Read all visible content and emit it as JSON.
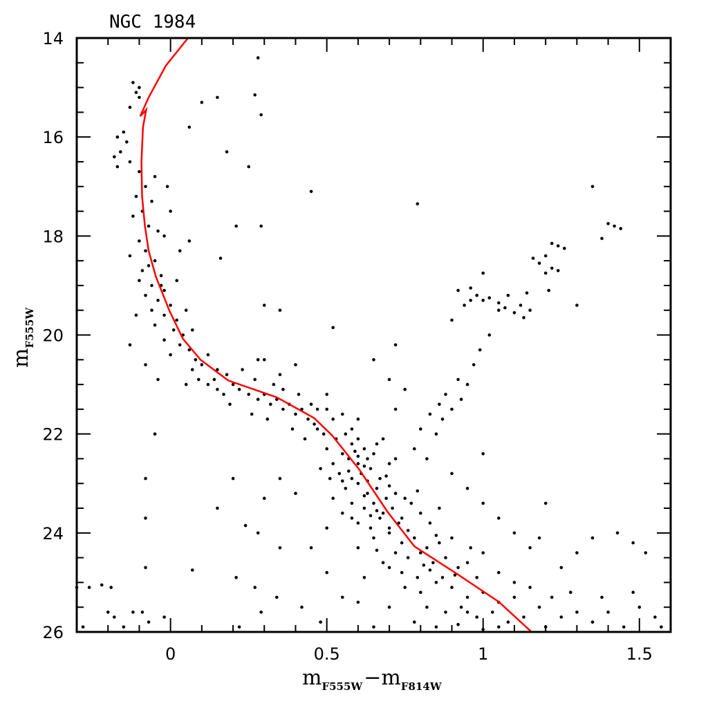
{
  "chart_data": {
    "type": "scatter",
    "title": "NGC 1984",
    "xlabel": {
      "base": "m",
      "sub": "F555W",
      "minus": "−",
      "base2": "m",
      "sub2": "F814W"
    },
    "ylabel": {
      "base": "m",
      "sub": "F555W"
    },
    "xlim": [
      -0.3,
      1.6
    ],
    "ylim": [
      26,
      14
    ],
    "y_inverted": true,
    "x_major_ticks": [
      0,
      0.5,
      1,
      1.5
    ],
    "x_tick_labels": [
      "0",
      "0.5",
      "1",
      "1.5"
    ],
    "x_minor_step": 0.1,
    "y_major_ticks": [
      14,
      16,
      18,
      20,
      22,
      24,
      26
    ],
    "y_tick_labels": [
      "14",
      "16",
      "18",
      "20",
      "22",
      "24",
      "26"
    ],
    "y_minor_step": 0.5,
    "grid": false,
    "point_color": "#000000",
    "isochrone_color": "#ff0000",
    "isochrone": [
      [
        0.056,
        14.0
      ],
      [
        -0.015,
        14.56
      ],
      [
        -0.07,
        15.2
      ],
      [
        -0.097,
        15.58
      ],
      [
        -0.085,
        15.5
      ],
      [
        -0.078,
        15.45
      ],
      [
        -0.088,
        15.8
      ],
      [
        -0.093,
        16.5
      ],
      [
        -0.091,
        17.2
      ],
      [
        -0.082,
        17.8
      ],
      [
        -0.07,
        18.3
      ],
      [
        -0.047,
        18.82
      ],
      [
        -0.003,
        19.52
      ],
      [
        0.04,
        20.08
      ],
      [
        0.096,
        20.5
      ],
      [
        0.185,
        20.92
      ],
      [
        0.34,
        21.26
      ],
      [
        0.46,
        21.68
      ],
      [
        0.517,
        22.03
      ],
      [
        0.605,
        22.73
      ],
      [
        0.694,
        23.57
      ],
      [
        0.78,
        24.27
      ],
      [
        0.917,
        24.83
      ],
      [
        1.05,
        25.39
      ],
      [
        1.155,
        26.0
      ]
    ],
    "points": [
      [
        -0.12,
        14.9
      ],
      [
        -0.1,
        15.0
      ],
      [
        -0.11,
        15.1
      ],
      [
        -0.1,
        15.2
      ],
      [
        -0.13,
        15.4
      ],
      [
        -0.15,
        15.9
      ],
      [
        -0.17,
        16.0
      ],
      [
        -0.14,
        16.1
      ],
      [
        -0.16,
        16.3
      ],
      [
        -0.18,
        16.4
      ],
      [
        -0.13,
        16.5
      ],
      [
        -0.17,
        16.6
      ],
      [
        -0.1,
        16.7
      ],
      [
        -0.05,
        16.8
      ],
      [
        -0.08,
        17.0
      ],
      [
        -0.11,
        17.2
      ],
      [
        -0.06,
        17.3
      ],
      [
        -0.09,
        17.5
      ],
      [
        -0.12,
        17.6
      ],
      [
        -0.07,
        17.8
      ],
      [
        -0.04,
        17.9
      ],
      [
        -0.1,
        18.1
      ],
      [
        -0.02,
        18.0
      ],
      [
        -0.08,
        18.3
      ],
      [
        -0.13,
        18.4
      ],
      [
        -0.05,
        18.5
      ],
      [
        -0.09,
        18.7
      ],
      [
        -0.03,
        18.8
      ],
      [
        -0.1,
        18.9
      ],
      [
        -0.06,
        19.0
      ],
      [
        -0.02,
        19.1
      ],
      [
        -0.08,
        19.2
      ],
      [
        -0.04,
        19.3
      ],
      [
        0.0,
        19.4
      ],
      [
        -0.06,
        19.5
      ],
      [
        -0.02,
        19.6
      ],
      [
        0.02,
        19.7
      ],
      [
        -0.05,
        19.8
      ],
      [
        0.01,
        19.9
      ],
      [
        0.04,
        20.0
      ],
      [
        -0.02,
        20.1
      ],
      [
        0.03,
        20.2
      ],
      [
        0.06,
        20.3
      ],
      [
        0.0,
        20.4
      ],
      [
        0.08,
        20.5
      ],
      [
        -0.03,
        19.0
      ],
      [
        -0.07,
        18.6
      ],
      [
        0.02,
        18.9
      ],
      [
        -0.11,
        19.6
      ],
      [
        0.05,
        19.5
      ],
      [
        0.07,
        19.9
      ],
      [
        -0.01,
        17.0
      ],
      [
        0.0,
        17.5
      ],
      [
        0.03,
        18.3
      ],
      [
        0.06,
        18.1
      ],
      [
        -0.13,
        20.2
      ],
      [
        -0.08,
        20.6
      ],
      [
        -0.04,
        20.9
      ],
      [
        0.1,
        20.6
      ],
      [
        0.12,
        20.4
      ],
      [
        0.15,
        20.7
      ],
      [
        0.14,
        20.9
      ],
      [
        0.18,
        20.8
      ],
      [
        0.2,
        21.0
      ],
      [
        0.22,
        21.1
      ],
      [
        0.25,
        21.2
      ],
      [
        0.27,
        20.9
      ],
      [
        0.28,
        21.3
      ],
      [
        0.3,
        21.2
      ],
      [
        0.32,
        21.4
      ],
      [
        0.34,
        21.3
      ],
      [
        0.36,
        21.5
      ],
      [
        0.38,
        21.4
      ],
      [
        0.4,
        21.6
      ],
      [
        0.42,
        21.5
      ],
      [
        0.44,
        21.7
      ],
      [
        0.46,
        21.8
      ],
      [
        0.47,
        21.9
      ],
      [
        0.49,
        22.0
      ],
      [
        0.12,
        21.0
      ],
      [
        0.17,
        21.2
      ],
      [
        0.23,
        20.7
      ],
      [
        0.28,
        20.5
      ],
      [
        0.33,
        21.0
      ],
      [
        0.36,
        21.1
      ],
      [
        0.41,
        21.2
      ],
      [
        0.45,
        21.4
      ],
      [
        0.5,
        21.5
      ],
      [
        0.52,
        21.7
      ],
      [
        0.55,
        21.6
      ],
      [
        0.58,
        21.9
      ],
      [
        0.6,
        21.7
      ],
      [
        0.09,
        20.9
      ],
      [
        0.19,
        21.4
      ],
      [
        0.26,
        21.6
      ],
      [
        0.31,
        21.7
      ],
      [
        0.39,
        21.9
      ],
      [
        0.43,
        22.1
      ],
      [
        0.5,
        21.2
      ],
      [
        0.47,
        21.5
      ],
      [
        0.35,
        20.8
      ],
      [
        0.3,
        20.5
      ],
      [
        0.4,
        20.6
      ],
      [
        0.15,
        21.1
      ],
      [
        0.07,
        20.7
      ],
      [
        0.05,
        21.0
      ],
      [
        0.53,
        22.1
      ],
      [
        0.56,
        22.0
      ],
      [
        0.58,
        22.2
      ],
      [
        0.6,
        22.1
      ],
      [
        0.62,
        22.3
      ],
      [
        0.55,
        22.4
      ],
      [
        0.57,
        22.5
      ],
      [
        0.6,
        22.6
      ],
      [
        0.63,
        22.5
      ],
      [
        0.65,
        22.4
      ],
      [
        0.52,
        22.6
      ],
      [
        0.54,
        22.8
      ],
      [
        0.58,
        22.9
      ],
      [
        0.61,
        22.8
      ],
      [
        0.64,
        22.7
      ],
      [
        0.67,
        22.9
      ],
      [
        0.7,
        22.6
      ],
      [
        0.5,
        22.3
      ],
      [
        0.48,
        22.7
      ],
      [
        0.66,
        22.2
      ],
      [
        0.59,
        22.35
      ],
      [
        0.62,
        22.65
      ],
      [
        0.57,
        22.75
      ],
      [
        0.69,
        22.85
      ],
      [
        0.55,
        22.95
      ],
      [
        0.72,
        22.5
      ],
      [
        0.68,
        22.1
      ],
      [
        0.51,
        22.9
      ],
      [
        0.63,
        22.95
      ],
      [
        0.6,
        22.45
      ],
      [
        0.56,
        23.1
      ],
      [
        0.6,
        23.0
      ],
      [
        0.63,
        23.2
      ],
      [
        0.66,
        23.1
      ],
      [
        0.69,
        23.3
      ],
      [
        0.72,
        23.2
      ],
      [
        0.58,
        23.4
      ],
      [
        0.62,
        23.5
      ],
      [
        0.65,
        23.4
      ],
      [
        0.68,
        23.6
      ],
      [
        0.71,
        23.5
      ],
      [
        0.74,
        23.7
      ],
      [
        0.77,
        23.4
      ],
      [
        0.6,
        23.8
      ],
      [
        0.64,
        23.9
      ],
      [
        0.67,
        23.7
      ],
      [
        0.7,
        23.9
      ],
      [
        0.73,
        23.8
      ],
      [
        0.76,
        23.95
      ],
      [
        0.8,
        23.6
      ],
      [
        0.55,
        23.6
      ],
      [
        0.52,
        23.3
      ],
      [
        0.83,
        23.8
      ],
      [
        0.62,
        23.25
      ],
      [
        0.7,
        23.05
      ],
      [
        0.75,
        23.3
      ],
      [
        0.66,
        23.55
      ],
      [
        0.79,
        23.15
      ],
      [
        0.58,
        23.7
      ],
      [
        0.86,
        23.5
      ],
      [
        0.5,
        23.9
      ],
      [
        0.64,
        23.65
      ],
      [
        0.65,
        24.1
      ],
      [
        0.7,
        24.0
      ],
      [
        0.74,
        24.2
      ],
      [
        0.78,
        24.1
      ],
      [
        0.82,
        24.3
      ],
      [
        0.86,
        24.2
      ],
      [
        0.72,
        24.4
      ],
      [
        0.76,
        24.5
      ],
      [
        0.8,
        24.4
      ],
      [
        0.84,
        24.6
      ],
      [
        0.88,
        24.5
      ],
      [
        0.92,
        24.7
      ],
      [
        0.68,
        24.6
      ],
      [
        0.74,
        24.8
      ],
      [
        0.79,
        24.9
      ],
      [
        0.83,
        24.75
      ],
      [
        0.87,
        24.9
      ],
      [
        0.91,
        24.85
      ],
      [
        0.95,
        24.6
      ],
      [
        0.98,
        24.9
      ],
      [
        0.62,
        24.9
      ],
      [
        0.6,
        24.3
      ],
      [
        1.0,
        24.4
      ],
      [
        0.9,
        24.1
      ],
      [
        0.7,
        24.7
      ],
      [
        0.85,
        24.05
      ],
      [
        0.96,
        24.3
      ],
      [
        1.05,
        24.8
      ],
      [
        0.66,
        24.35
      ],
      [
        0.81,
        24.65
      ],
      [
        0.75,
        25.1
      ],
      [
        0.8,
        25.2
      ],
      [
        0.85,
        25.0
      ],
      [
        0.9,
        25.1
      ],
      [
        0.95,
        25.3
      ],
      [
        1.0,
        25.2
      ],
      [
        1.05,
        25.4
      ],
      [
        1.1,
        25.3
      ],
      [
        0.82,
        25.5
      ],
      [
        0.88,
        25.6
      ],
      [
        0.93,
        25.5
      ],
      [
        0.98,
        25.7
      ],
      [
        1.03,
        25.6
      ],
      [
        1.08,
        25.8
      ],
      [
        1.13,
        25.7
      ],
      [
        1.18,
        25.5
      ],
      [
        0.78,
        25.8
      ],
      [
        0.85,
        25.9
      ],
      [
        0.92,
        25.85
      ],
      [
        1.0,
        25.95
      ],
      [
        1.2,
        25.9
      ],
      [
        1.25,
        25.7
      ],
      [
        1.3,
        25.6
      ],
      [
        1.22,
        25.3
      ],
      [
        1.15,
        25.1
      ],
      [
        0.7,
        25.5
      ],
      [
        0.65,
        25.9
      ],
      [
        1.35,
        25.8
      ],
      [
        1.4,
        25.6
      ],
      [
        1.45,
        25.9
      ],
      [
        1.5,
        25.5
      ],
      [
        1.55,
        25.7
      ],
      [
        1.28,
        25.2
      ],
      [
        1.1,
        25.0
      ],
      [
        0.95,
        25.6
      ],
      [
        1.05,
        25.9
      ],
      [
        1.38,
        25.3
      ],
      [
        1.57,
        25.9
      ],
      [
        1.48,
        25.2
      ],
      [
        0.6,
        25.4
      ],
      [
        0.9,
        19.7
      ],
      [
        0.92,
        19.1
      ],
      [
        0.94,
        19.4
      ],
      [
        0.96,
        19.3
      ],
      [
        0.98,
        19.2
      ],
      [
        1.0,
        19.3
      ],
      [
        1.02,
        19.25
      ],
      [
        0.96,
        19.05
      ],
      [
        1.0,
        18.75
      ],
      [
        1.02,
        20.0
      ],
      [
        1.05,
        19.35
      ],
      [
        1.08,
        19.2
      ],
      [
        1.05,
        19.5
      ],
      [
        1.07,
        19.45
      ],
      [
        1.1,
        19.55
      ],
      [
        1.12,
        19.4
      ],
      [
        1.14,
        19.15
      ],
      [
        1.13,
        19.65
      ],
      [
        1.16,
        18.45
      ],
      [
        1.18,
        18.55
      ],
      [
        1.2,
        18.4
      ],
      [
        1.22,
        18.65
      ],
      [
        1.2,
        18.75
      ],
      [
        1.22,
        18.15
      ],
      [
        1.24,
        18.2
      ],
      [
        1.26,
        18.25
      ],
      [
        1.24,
        18.7
      ],
      [
        1.21,
        19.1
      ],
      [
        1.15,
        19.5
      ],
      [
        1.3,
        19.4
      ],
      [
        1.35,
        17.0
      ],
      [
        1.38,
        18.05
      ],
      [
        1.4,
        17.75
      ],
      [
        1.42,
        17.8
      ],
      [
        1.44,
        17.85
      ],
      [
        0.99,
        20.3
      ],
      [
        0.97,
        20.6
      ],
      [
        0.95,
        21.0
      ],
      [
        0.93,
        21.3
      ],
      [
        0.9,
        21.5
      ],
      [
        0.87,
        21.7
      ],
      [
        0.85,
        22.0
      ],
      [
        0.8,
        21.9
      ],
      [
        0.83,
        21.6
      ],
      [
        0.88,
        21.2
      ],
      [
        0.92,
        20.9
      ],
      [
        0.86,
        21.4
      ],
      [
        0.78,
        22.3
      ],
      [
        0.82,
        22.5
      ],
      [
        0.9,
        22.8
      ],
      [
        0.95,
        23.1
      ],
      [
        1.0,
        23.4
      ],
      [
        1.05,
        23.7
      ],
      [
        1.1,
        24.0
      ],
      [
        1.15,
        24.3
      ],
      [
        1.18,
        24.1
      ],
      [
        1.25,
        24.7
      ],
      [
        1.3,
        24.4
      ],
      [
        1.35,
        24.1
      ],
      [
        1.43,
        24.0
      ],
      [
        1.48,
        24.2
      ],
      [
        1.52,
        24.4
      ],
      [
        1.2,
        23.4
      ],
      [
        1.0,
        22.4
      ],
      [
        0.75,
        21.1
      ],
      [
        0.7,
        20.9
      ],
      [
        0.72,
        21.5
      ],
      [
        0.06,
        15.8
      ],
      [
        0.1,
        15.3
      ],
      [
        0.15,
        15.2
      ],
      [
        0.27,
        15.15
      ],
      [
        0.28,
        14.4
      ],
      [
        0.29,
        15.55
      ],
      [
        0.18,
        16.3
      ],
      [
        0.25,
        16.6
      ],
      [
        0.45,
        17.1
      ],
      [
        0.21,
        17.8
      ],
      [
        0.29,
        17.8
      ],
      [
        0.79,
        17.35
      ],
      [
        0.16,
        18.45
      ],
      [
        0.3,
        19.4
      ],
      [
        0.35,
        19.5
      ],
      [
        0.52,
        19.85
      ],
      [
        0.65,
        20.5
      ],
      [
        0.72,
        20.2
      ],
      [
        -0.05,
        22.0
      ],
      [
        -0.08,
        22.9
      ],
      [
        -0.08,
        23.7
      ],
      [
        -0.08,
        24.7
      ],
      [
        0.07,
        24.75
      ],
      [
        0.2,
        22.9
      ],
      [
        0.3,
        23.3
      ],
      [
        0.15,
        23.5
      ],
      [
        0.24,
        23.85
      ],
      [
        0.35,
        22.9
      ],
      [
        0.4,
        23.2
      ],
      [
        0.28,
        24.0
      ],
      [
        0.35,
        24.3
      ],
      [
        0.21,
        24.9
      ],
      [
        0.27,
        25.1
      ],
      [
        0.34,
        25.3
      ],
      [
        0.29,
        25.6
      ],
      [
        0.22,
        25.9
      ],
      [
        -0.02,
        25.7
      ],
      [
        -0.3,
        25.1
      ],
      [
        -0.26,
        25.1
      ],
      [
        -0.22,
        25.05
      ],
      [
        -0.19,
        25.1
      ],
      [
        -0.2,
        25.6
      ],
      [
        -0.18,
        25.7
      ],
      [
        -0.12,
        25.6
      ],
      [
        -0.09,
        25.6
      ],
      [
        -0.07,
        25.8
      ],
      [
        -0.15,
        25.9
      ],
      [
        -0.28,
        25.9
      ],
      [
        0.45,
        24.3
      ],
      [
        0.42,
        25.5
      ],
      [
        0.48,
        25.8
      ],
      [
        0.55,
        25.3
      ],
      [
        0.5,
        24.8
      ]
    ]
  }
}
